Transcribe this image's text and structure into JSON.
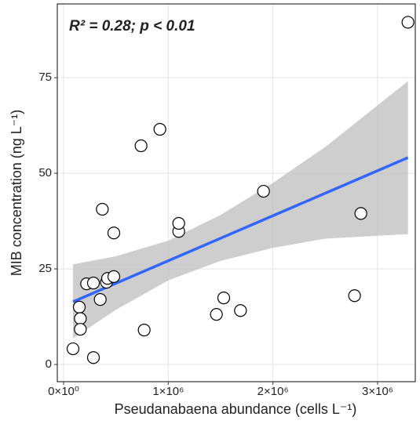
{
  "chart_data": {
    "type": "scatter",
    "annotation": "R² = 0.28; p < 0.01",
    "x_label": "Pseudanabaena abundance (cells L⁻¹)",
    "y_label": "MIB concentration (ng L⁻¹)",
    "xlim": [
      -60000,
      3360000
    ],
    "ylim": [
      -4.5,
      94.3
    ],
    "xticks": [
      {
        "value": 0,
        "label": "0×10⁰"
      },
      {
        "value": 1000000,
        "label": "1×10⁶"
      },
      {
        "value": 2000000,
        "label": "2×10⁶"
      },
      {
        "value": 3000000,
        "label": "3×10⁶"
      }
    ],
    "yticks": [
      0,
      25,
      50,
      75
    ],
    "grid": true,
    "series": [
      {
        "color": "#ffffff",
        "x": [
          3290000,
          90000,
          285000,
          150000,
          160000,
          160000,
          220000,
          285000,
          350000,
          410000,
          420000,
          480000,
          370000,
          480000,
          740000,
          920000,
          770000,
          1100000,
          1100000,
          1460000,
          1530000,
          1690000,
          1910000,
          2780000,
          2840000
        ],
        "values": [
          89.5,
          4.1,
          1.8,
          15,
          12,
          9.2,
          21.1,
          21.3,
          17,
          21.5,
          22.5,
          23,
          40.6,
          34.4,
          57.2,
          61.5,
          9,
          34.8,
          36.9,
          13.1,
          17.4,
          14.1,
          45.3,
          18,
          39.5
        ]
      }
    ],
    "fit": {
      "color": "#3366ff",
      "x": [
        90000,
        3290000
      ],
      "values": [
        16.4,
        54.1
      ]
    },
    "band": {
      "color": "#bdbdbd",
      "x": [
        90000,
        500000,
        1000000,
        1500000,
        2000000,
        2500000,
        3290000
      ],
      "lower": [
        6.8,
        14.3,
        22,
        27.1,
        30.5,
        32.9,
        34.1
      ],
      "upper": [
        26.2,
        28.3,
        32.4,
        39.1,
        47.5,
        56.9,
        74.1
      ]
    }
  }
}
